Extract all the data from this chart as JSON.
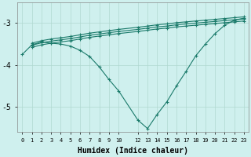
{
  "xlabel": "Humidex (Indice chaleur)",
  "bg_color": "#cff0ee",
  "grid_color": "#b0d8d0",
  "line_color": "#1a7a6a",
  "ylim": [
    -5.6,
    -2.5
  ],
  "xlim": [
    -0.5,
    23.5
  ],
  "yticks": [
    -5,
    -4,
    -3
  ],
  "ytick_labels": [
    "-5",
    "-4",
    "-3"
  ],
  "x_ticks": [
    0,
    1,
    2,
    3,
    4,
    5,
    6,
    7,
    8,
    9,
    10,
    12,
    13,
    14,
    15,
    16,
    17,
    18,
    19,
    20,
    21,
    22,
    23
  ],
  "tick_labels": [
    "0",
    "1",
    "2",
    "3",
    "4",
    "5",
    "6",
    "7",
    "8",
    "9",
    "10",
    "12",
    "13",
    "14",
    "15",
    "16",
    "17",
    "18",
    "19",
    "20",
    "21",
    "22",
    "23"
  ],
  "diag1_x": [
    1,
    2,
    3,
    4,
    5,
    6,
    7,
    8,
    9,
    10,
    12,
    13,
    14,
    15,
    16,
    17,
    18,
    19,
    20,
    21,
    22,
    23
  ],
  "diag1_y": [
    -3.48,
    -3.42,
    -3.38,
    -3.35,
    -3.32,
    -3.28,
    -3.24,
    -3.21,
    -3.18,
    -3.15,
    -3.1,
    -3.07,
    -3.04,
    -3.02,
    -2.99,
    -2.97,
    -2.95,
    -2.93,
    -2.91,
    -2.89,
    -2.87,
    -2.85
  ],
  "diag2_x": [
    1,
    2,
    3,
    4,
    5,
    6,
    7,
    8,
    9,
    10,
    12,
    13,
    14,
    15,
    16,
    17,
    18,
    19,
    20,
    21,
    22,
    23
  ],
  "diag2_y": [
    -3.53,
    -3.47,
    -3.43,
    -3.4,
    -3.37,
    -3.33,
    -3.29,
    -3.26,
    -3.23,
    -3.2,
    -3.15,
    -3.12,
    -3.09,
    -3.07,
    -3.04,
    -3.02,
    -3.0,
    -2.98,
    -2.96,
    -2.94,
    -2.92,
    -2.9
  ],
  "diag3_x": [
    1,
    2,
    3,
    4,
    5,
    6,
    7,
    8,
    9,
    10,
    12,
    13,
    14,
    15,
    16,
    17,
    18,
    19,
    20,
    21,
    22,
    23
  ],
  "diag3_y": [
    -3.58,
    -3.52,
    -3.48,
    -3.45,
    -3.42,
    -3.38,
    -3.34,
    -3.31,
    -3.28,
    -3.25,
    -3.2,
    -3.17,
    -3.14,
    -3.12,
    -3.09,
    -3.07,
    -3.05,
    -3.03,
    -3.01,
    -2.99,
    -2.97,
    -2.95
  ],
  "curve_x": [
    0,
    1,
    2,
    3,
    4,
    5,
    6,
    7,
    8,
    9,
    10,
    12,
    13,
    14,
    15,
    16,
    17,
    18,
    19,
    20,
    21,
    22,
    23
  ],
  "curve_y": [
    -3.75,
    -3.52,
    -3.45,
    -3.48,
    -3.5,
    -3.55,
    -3.65,
    -3.8,
    -4.05,
    -4.35,
    -4.62,
    -5.32,
    -5.52,
    -5.18,
    -4.88,
    -4.5,
    -4.15,
    -3.78,
    -3.5,
    -3.25,
    -3.05,
    -2.93,
    -2.88
  ]
}
